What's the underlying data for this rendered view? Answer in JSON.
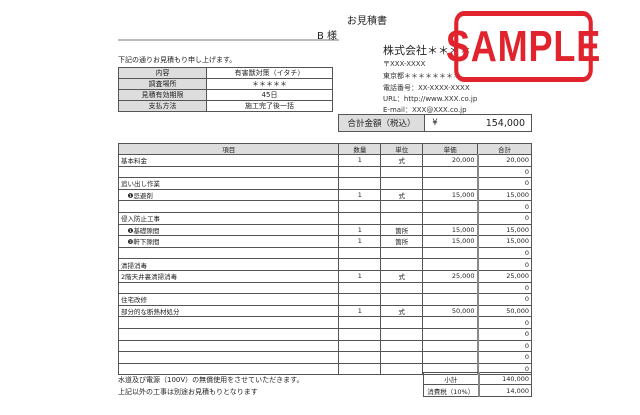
{
  "title": "お見積書",
  "customer": "B 様",
  "intro": "下記の通りお見積もり申し上げます。",
  "info": [
    {
      "label": "内容",
      "value": "有害獣対策（イタチ）"
    },
    {
      "label": "調査場所",
      "value": "＊＊＊＊＊"
    },
    {
      "label": "見積有効期限",
      "value": "45日"
    },
    {
      "label": "支払方法",
      "value": "施工完了後一括"
    }
  ],
  "company": {
    "name": "株式会社＊＊＊＊",
    "postal": "〒XXX-XXXX",
    "address": "東京都＊＊＊＊＊＊＊＊",
    "phone": "電話番号：XX-XXXX-XXXX",
    "url": "URL：http://www.XXX.co.jp",
    "email": "E-mail：XXX@XXX.co.jp"
  },
  "total": {
    "label": "合計金額（税込）",
    "currency": "¥",
    "value": "154,000"
  },
  "table": {
    "headers": [
      "項目",
      "数量",
      "単位",
      "単価",
      "合計"
    ],
    "rows": [
      [
        "基本料金",
        "1",
        "式",
        "20,000",
        "20,000"
      ],
      [
        "",
        "",
        "",
        "",
        "0"
      ],
      [
        "追い出し作業",
        "",
        "",
        "",
        "0"
      ],
      [
        "　❶忌避剤",
        "1",
        "式",
        "15,000",
        "15,000"
      ],
      [
        "",
        "",
        "",
        "",
        "0"
      ],
      [
        "侵入防止工事",
        "",
        "",
        "",
        "0"
      ],
      [
        "　❶基礎隙間",
        "1",
        "箇所",
        "15,000",
        "15,000"
      ],
      [
        "　❷軒下隙間",
        "1",
        "箇所",
        "15,000",
        "15,000"
      ],
      [
        "",
        "",
        "",
        "",
        "0"
      ],
      [
        "清掃消毒",
        "",
        "",
        "",
        "0"
      ],
      [
        "2階天井裏清掃消毒",
        "1",
        "式",
        "25,000",
        "25,000"
      ],
      [
        "",
        "",
        "",
        "",
        "0"
      ],
      [
        "住宅改修",
        "",
        "",
        "",
        "0"
      ],
      [
        "部分的な断熱材処分",
        "1",
        "式",
        "50,000",
        "50,000"
      ],
      [
        "",
        "",
        "",
        "",
        "0"
      ],
      [
        "",
        "",
        "",
        "",
        "0"
      ],
      [
        "",
        "",
        "",
        "",
        "0"
      ],
      [
        "",
        "",
        "",
        "",
        "0"
      ],
      [
        "",
        "",
        "",
        "",
        "0"
      ]
    ]
  },
  "notes": [
    "水道及び電源（100V）の無償使用をさせていただきます。",
    "上記以外の工事は別途お見積もりとなります"
  ],
  "summary": [
    {
      "label": "小計",
      "value": "140,000"
    },
    {
      "label": "消費税（10%）",
      "value": "14,000"
    }
  ],
  "stamp": {
    "text": "SAMPLE",
    "color": "#e0232c"
  }
}
